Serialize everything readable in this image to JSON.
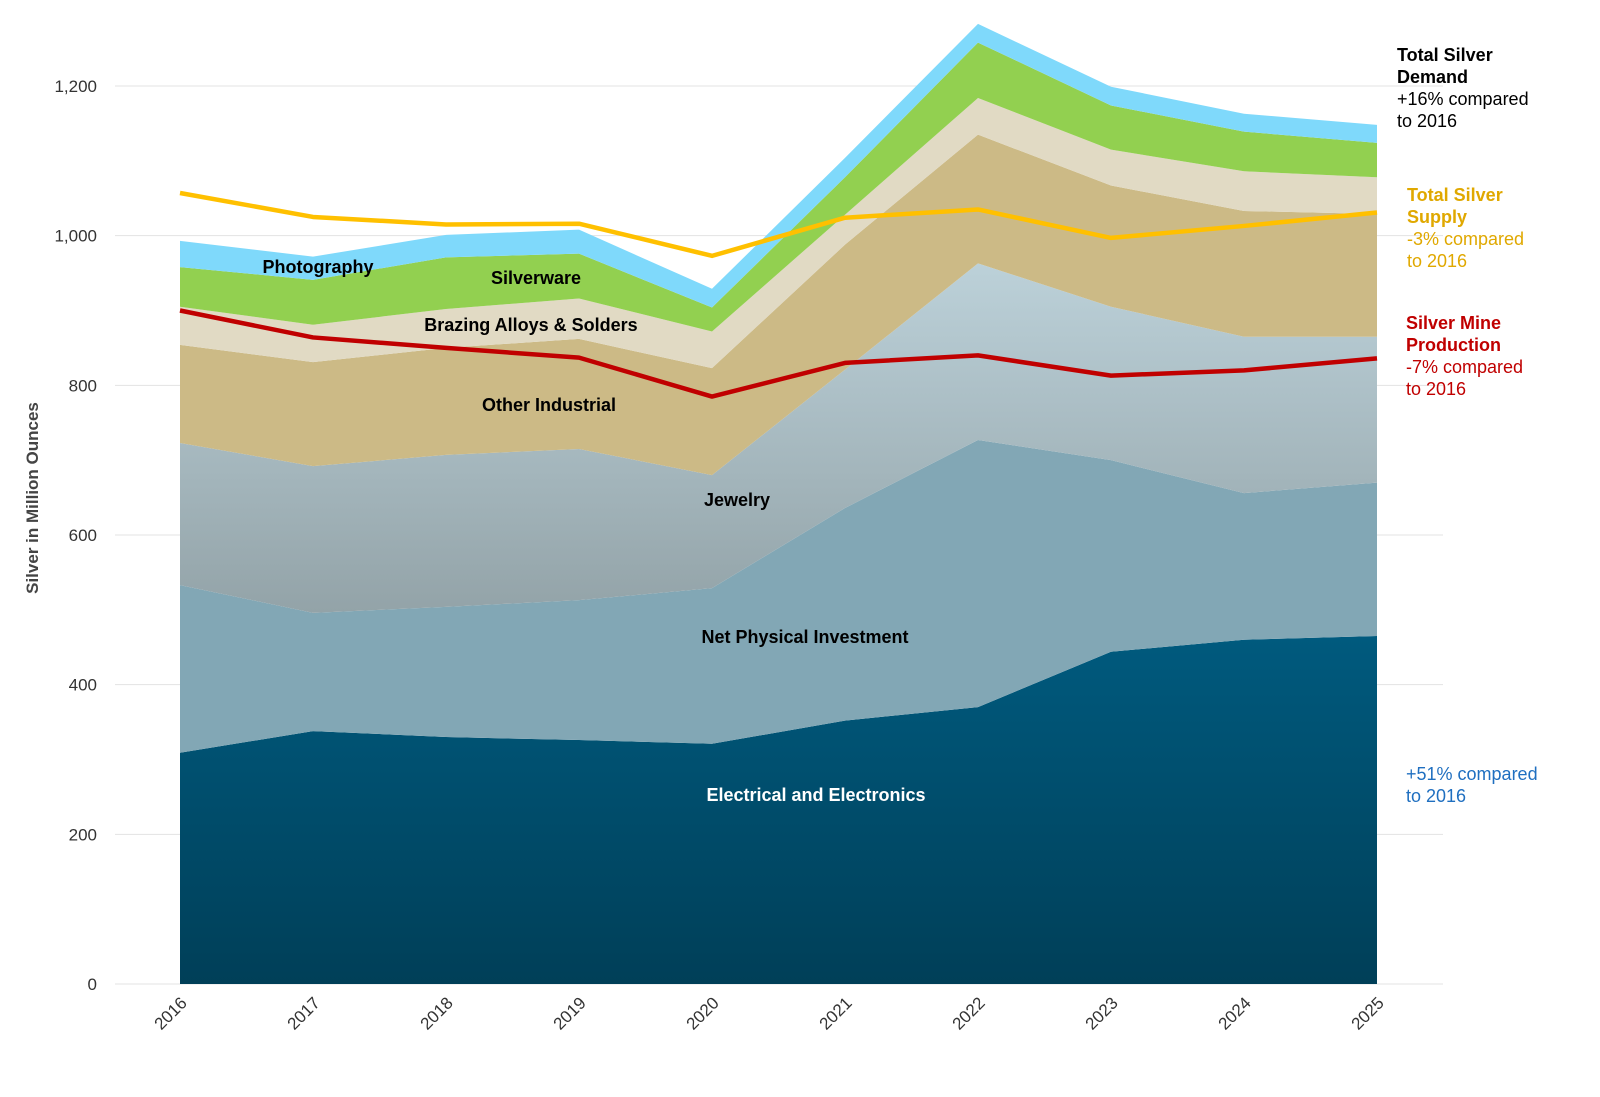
{
  "chart_data": {
    "type": "area",
    "stacked": true,
    "title": "",
    "xlabel": "",
    "ylabel": "Silver in Million Ounces",
    "ylim": [
      0,
      1200
    ],
    "yticks": [
      0,
      200,
      400,
      600,
      800,
      1000,
      1200
    ],
    "ytick_labels": [
      "0",
      "200",
      "400",
      "600",
      "800",
      "1,000",
      "1,200"
    ],
    "grid": true,
    "categories": [
      "2016",
      "2017",
      "2018",
      "2019",
      "2020",
      "2021",
      "2022",
      "2023",
      "2024",
      "2025"
    ],
    "series": [
      {
        "name": "Electrical and Electronics",
        "color": "#005a7e",
        "values": [
          309,
          338,
          330,
          326,
          321,
          352,
          370,
          444,
          460,
          465
        ]
      },
      {
        "name": "Net Physical Investment",
        "color": "#82a7b5",
        "values": [
          224,
          158,
          174,
          187,
          208,
          284,
          357,
          256,
          196,
          205
        ]
      },
      {
        "name": "Jewelry",
        "color": "#b2c6ce",
        "values": [
          190,
          196,
          203,
          202,
          151,
          185,
          236,
          205,
          209,
          195
        ]
      },
      {
        "name": "Other Industrial",
        "color": "#ccba86",
        "values": [
          131,
          139,
          143,
          147,
          143,
          167,
          172,
          162,
          168,
          164
        ]
      },
      {
        "name": "Brazing Alloys & Solders",
        "color": "#e1dac4",
        "values": [
          51,
          50,
          52,
          54,
          49,
          40,
          49,
          48,
          53,
          49
        ]
      },
      {
        "name": "Silverware",
        "color": "#92d050",
        "values": [
          53,
          60,
          69,
          60,
          32,
          50,
          74,
          59,
          53,
          46
        ]
      },
      {
        "name": "Photography",
        "color": "#7fd9fb",
        "values": [
          35,
          31,
          30,
          32,
          25,
          26,
          25,
          25,
          24,
          24
        ]
      }
    ],
    "lines": [
      {
        "name": "Total Silver Supply",
        "color": "#ffc000",
        "values": [
          1057,
          1025,
          1015,
          1016,
          973,
          1024,
          1035,
          997,
          1013,
          1031
        ]
      },
      {
        "name": "Silver Mine Production",
        "color": "#c00000",
        "values": [
          900,
          864,
          850,
          837,
          785,
          830,
          840,
          813,
          820,
          836
        ]
      }
    ],
    "annotations": {
      "demand": {
        "title": "Total Silver Demand",
        "text": "+16% compared to 2016",
        "color": "#000000"
      },
      "supply": {
        "title": "Total Silver Supply",
        "text": "-3% compared to 2016",
        "color": "#e0a800"
      },
      "mine": {
        "title": "Silver Mine Production",
        "text": "-7% compared to 2016",
        "color": "#c00000"
      },
      "electrical": {
        "text": "+51% compared to 2016",
        "color": "#1f6fc0"
      }
    }
  }
}
